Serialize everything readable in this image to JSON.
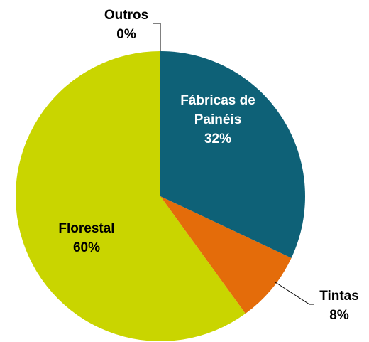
{
  "chart_data": {
    "type": "pie",
    "categories": [
      "Fábricas de Painéis",
      "Tintas",
      "Florestal",
      "Outros"
    ],
    "values": [
      32,
      8,
      60,
      0
    ],
    "value_labels": [
      "32%",
      "8%",
      "60%",
      "0%"
    ],
    "colors": [
      "#0e6177",
      "#e46c0a",
      "#c9d500",
      "#7f7f7f"
    ]
  }
}
